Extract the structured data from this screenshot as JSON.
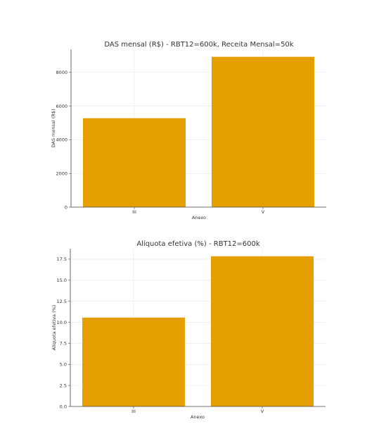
{
  "chart_data": [
    {
      "type": "bar",
      "title": "DAS mensal (R$) - RBT12=600k, Receita Mensal=50k",
      "xlabel": "Anexo",
      "ylabel": "DAS mensal (R$)",
      "categories": [
        "III",
        "V"
      ],
      "values": [
        5280,
        8925
      ],
      "ylim": [
        0,
        9370
      ],
      "yticks": [
        0,
        2000,
        4000,
        6000,
        8000
      ],
      "ytick_labels": [
        "0",
        "2000",
        "4000",
        "6000",
        "8000"
      ],
      "grid": true,
      "bar_color": "#e69f00"
    },
    {
      "type": "bar",
      "title": "Alíquota efetiva (%) - RBT12=600k",
      "xlabel": "Anexo",
      "ylabel": "Alíquota efetiva (%)",
      "categories": [
        "III",
        "V"
      ],
      "values": [
        10.56,
        17.85
      ],
      "ylim": [
        0,
        18.75
      ],
      "yticks": [
        0,
        2.5,
        5,
        7.5,
        10,
        12.5,
        15,
        17.5
      ],
      "ytick_labels": [
        "0.0",
        "2.5",
        "5.0",
        "7.5",
        "10.0",
        "12.5",
        "15.0",
        "17.5"
      ],
      "grid": true,
      "bar_color": "#e69f00"
    }
  ]
}
